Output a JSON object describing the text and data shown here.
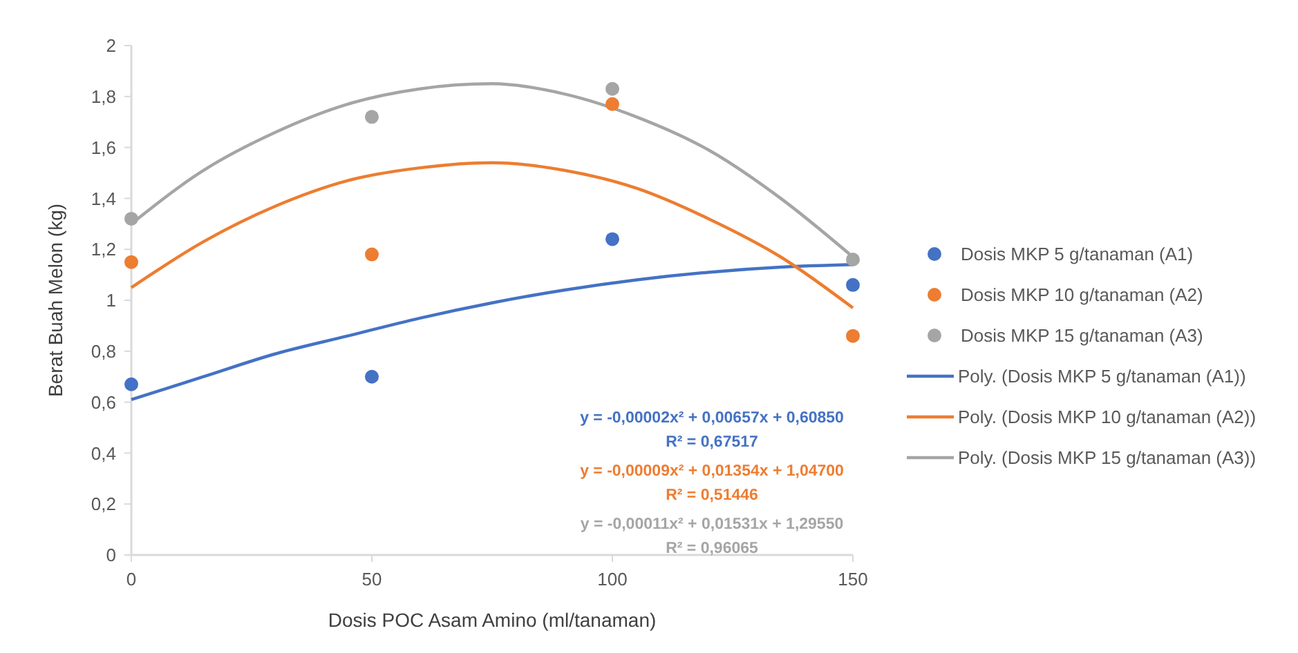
{
  "chart_data": {
    "type": "scatter",
    "xlabel": "Dosis POC Asam Amino (ml/tanaman)",
    "ylabel": "Berat Buah Melon (kg)",
    "xlim": [
      0,
      150
    ],
    "xticks": [
      0,
      50,
      100,
      150
    ],
    "ylim": [
      0,
      2
    ],
    "yticks": [
      {
        "value": 0,
        "label": "0"
      },
      {
        "value": 0.2,
        "label": "0,2"
      },
      {
        "value": 0.4,
        "label": "0,4"
      },
      {
        "value": 0.6,
        "label": "0,6"
      },
      {
        "value": 0.8,
        "label": "0,8"
      },
      {
        "value": 1,
        "label": "1"
      },
      {
        "value": 1.2,
        "label": "1,2"
      },
      {
        "value": 1.4,
        "label": "1,4"
      },
      {
        "value": 1.6,
        "label": "1,6"
      },
      {
        "value": 1.8,
        "label": "1,8"
      },
      {
        "value": 2,
        "label": "2"
      }
    ],
    "grid": false,
    "legend": "right",
    "marker": "circle",
    "x": [
      0,
      50,
      100,
      150
    ],
    "series": [
      {
        "name": "Dosis MKP 5 g/tanaman (A1)",
        "color": "#4472c4",
        "values": [
          0.67,
          0.7,
          1.24,
          1.06
        ]
      },
      {
        "name": "Dosis MKP 10 g/tanaman (A2)",
        "color": "#ed7d31",
        "values": [
          1.15,
          1.18,
          1.77,
          0.86
        ]
      },
      {
        "name": "Dosis MKP 15 g/tanaman (A3)",
        "color": "#a5a5a5",
        "values": [
          1.32,
          1.72,
          1.83,
          1.16
        ]
      },
      {
        "name": "Poly. (Dosis MKP 5 g/tanaman (A1))",
        "type": "line",
        "marker": "none",
        "color": "#4472c4",
        "x": [
          0,
          15,
          30,
          45,
          60,
          75,
          90,
          105,
          120,
          135,
          150
        ],
        "values": [
          0.61,
          0.7,
          0.79,
          0.86,
          0.93,
          0.99,
          1.04,
          1.08,
          1.11,
          1.13,
          1.14
        ]
      },
      {
        "name": "Poly. (Dosis MKP 10 g/tanaman (A2))",
        "type": "line",
        "marker": "none",
        "color": "#ed7d31",
        "x": [
          0,
          15,
          30,
          45,
          60,
          75,
          90,
          105,
          120,
          135,
          150
        ],
        "values": [
          1.05,
          1.23,
          1.37,
          1.47,
          1.52,
          1.54,
          1.51,
          1.44,
          1.32,
          1.17,
          0.97
        ]
      },
      {
        "name": "Poly. (Dosis MKP 15 g/tanaman (A3))",
        "type": "line",
        "marker": "none",
        "color": "#a5a5a5",
        "x": [
          0,
          15,
          30,
          45,
          60,
          75,
          90,
          105,
          120,
          135,
          150
        ],
        "values": [
          1.3,
          1.51,
          1.66,
          1.77,
          1.83,
          1.85,
          1.81,
          1.72,
          1.59,
          1.4,
          1.17
        ]
      }
    ],
    "annotations": [
      "y = -0,00002x² + 0,00657x + 0,60850",
      "R² = 0,67517",
      "y = -0,00009x² + 0,01354x + 1,04700",
      "R² = 0,51446",
      "y = -0,00011x² + 0,01531x + 1,29550",
      "R² = 0,96065"
    ]
  }
}
